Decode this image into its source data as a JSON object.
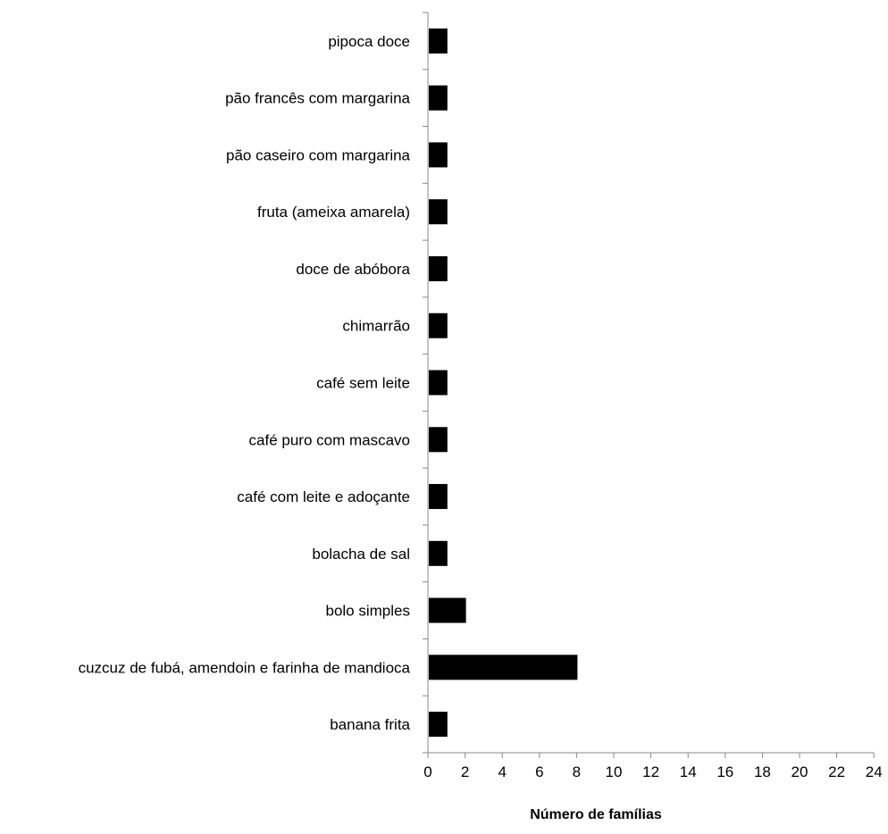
{
  "chart_data": {
    "type": "bar",
    "orientation": "horizontal",
    "categories": [
      "pipoca doce",
      "pão francês com margarina",
      "pão caseiro com margarina",
      "fruta (ameixa amarela)",
      "doce de abóbora",
      "chimarrão",
      "café sem leite",
      "café puro com mascavo",
      "café com leite e adoçante",
      "bolacha de sal",
      "bolo simples",
      "cuzcuz de fubá, amendoin e farinha de mandioca",
      "banana frita"
    ],
    "values": [
      1,
      1,
      1,
      1,
      1,
      1,
      1,
      1,
      1,
      1,
      2,
      8,
      1
    ],
    "title": "",
    "xlabel": "Número de famílias",
    "ylabel": "",
    "xlim": [
      0,
      24
    ],
    "xticks": [
      "0",
      "2",
      "4",
      "6",
      "8",
      "10",
      "12",
      "14",
      "16",
      "18",
      "20",
      "22",
      "24"
    ],
    "grid": false,
    "bar_color": "#000000"
  }
}
